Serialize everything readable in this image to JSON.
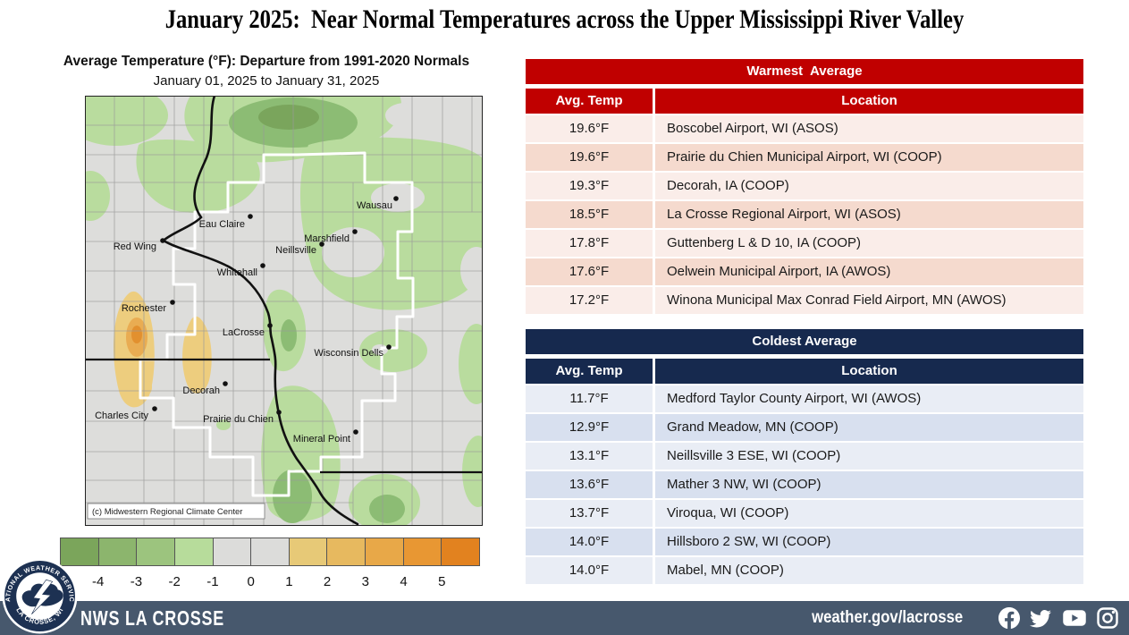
{
  "theme": {
    "red": "#C00000",
    "navy": "#16294E",
    "footer": "#47586D"
  },
  "page": {
    "title": "January 2025:  Near Normal Temperatures across the Upper Mississippi River Valley"
  },
  "map": {
    "title": "Average Temperature (°F): Departure from 1991-2020 Normals",
    "subtitle": "January 01, 2025 to January 31, 2025",
    "credit": "(c) Midwestern Regional Climate Center",
    "cities": [
      "Wausau",
      "Eau Claire",
      "Marshfield",
      "Neillsville",
      "Red Wing",
      "Whitehall",
      "Rochester",
      "LaCrosse",
      "Wisconsin Dells",
      "Decorah",
      "Charles City",
      "Prairie du Chien",
      "Mineral Point"
    ],
    "colorbar": {
      "ticks": [
        "-4",
        "-3",
        "-2",
        "-1",
        "0",
        "1",
        "2",
        "3",
        "4",
        "5"
      ],
      "colors": [
        "#7BA55B",
        "#8CB56D",
        "#9CC47E",
        "#B7DC9B",
        "#DCDCDA",
        "#DCDCDA",
        "#E7C977",
        "#E7B95F",
        "#E8A848",
        "#E89733",
        "#E2821F"
      ]
    }
  },
  "tables": {
    "warmest": {
      "title": "Warmest  Average",
      "col_temp": "Avg. Temp",
      "col_location": "Location",
      "rows": [
        {
          "temp": "19.6°F",
          "location": "Boscobel Airport, WI (ASOS)"
        },
        {
          "temp": "19.6°F",
          "location": "Prairie du Chien Municipal Airport, WI (COOP)"
        },
        {
          "temp": "19.3°F",
          "location": "Decorah, IA (COOP)"
        },
        {
          "temp": "18.5°F",
          "location": "La Crosse Regional Airport, WI (ASOS)"
        },
        {
          "temp": "17.8°F",
          "location": "Guttenberg L & D 10, IA (COOP)"
        },
        {
          "temp": "17.6°F",
          "location": "Oelwein Municipal Airport, IA (AWOS)"
        },
        {
          "temp": "17.2°F",
          "location": "Winona Municipal Max Conrad Field Airport, MN (AWOS)"
        }
      ]
    },
    "coldest": {
      "title": "Coldest Average",
      "col_temp": "Avg. Temp",
      "col_location": "Location",
      "rows": [
        {
          "temp": "11.7°F",
          "location": "Medford Taylor County Airport, WI (AWOS)"
        },
        {
          "temp": "12.9°F",
          "location": "Grand Meadow, MN (COOP)"
        },
        {
          "temp": "13.1°F",
          "location": "Neillsville 3 ESE, WI (COOP)"
        },
        {
          "temp": "13.6°F",
          "location": "Mather 3 NW, WI (COOP)"
        },
        {
          "temp": "13.7°F",
          "location": "Viroqua, WI (COOP)"
        },
        {
          "temp": "14.0°F",
          "location": "Hillsboro 2 SW, WI (COOP)"
        },
        {
          "temp": "14.0°F",
          "location": "Mabel, MN (COOP)"
        }
      ]
    }
  },
  "footer": {
    "station": "NWS LA CROSSE",
    "url": "weather.gov/lacrosse",
    "logo_top": "NATIONAL WEATHER SERVICE",
    "logo_bottom": "LA CROSSE, WI",
    "social": [
      "facebook",
      "twitter",
      "youtube",
      "instagram"
    ]
  }
}
